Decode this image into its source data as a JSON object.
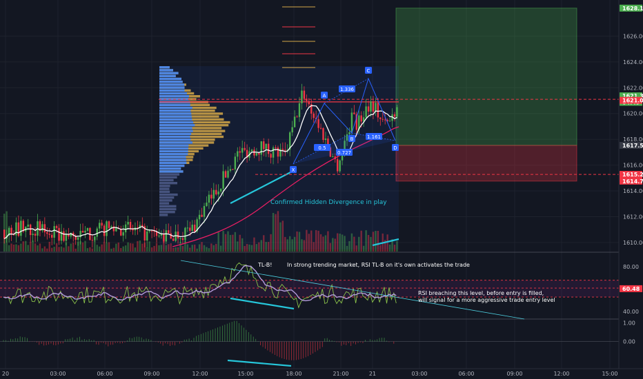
{
  "chart_data": [
    {
      "type": "candlestick",
      "panel": "price",
      "price_ticks": [
        1610,
        1612,
        1614,
        1616,
        1618,
        1620,
        1622,
        1624,
        1626
      ],
      "price_range": [
        1609.3,
        1628.8
      ],
      "x_ticks": [
        "20",
        "03:00",
        "06:00",
        "09:00",
        "12:00",
        "15:00",
        "18:00",
        "21:00",
        "21",
        "03:00",
        "06:00",
        "09:00",
        "12:00",
        "15:00"
      ],
      "price_tags": [
        {
          "label": "1628.17",
          "value": 1628.17,
          "color": "#4caf50"
        },
        {
          "label": "1621.37",
          "value": 1621.37,
          "color": "#4caf50"
        },
        {
          "label": "04:49",
          "value": 1620.87,
          "color": "#4caf50"
        },
        {
          "label": "1621.02",
          "value": 1621.02,
          "color": "#f23645"
        },
        {
          "label": "1617.53",
          "value": 1617.53,
          "color": "#363a45"
        },
        {
          "label": "1615.28",
          "value": 1615.28,
          "color": "#f23645"
        },
        {
          "label": "1614.76",
          "value": 1614.76,
          "color": "#f23645"
        }
      ],
      "harmonic_points": [
        {
          "label": "X",
          "price": 1615.9
        },
        {
          "label": "A",
          "price": 1621.5
        },
        {
          "label": "B",
          "price": 1618.5
        },
        {
          "label": "C",
          "price": 1623.2
        },
        {
          "label": "D",
          "price": 1617.5
        }
      ],
      "ratios": [
        "1.336",
        "0.5",
        "0.727",
        "1.161"
      ],
      "annotation": "Confirmed Hidden Divergence in play",
      "trade_box": {
        "target": 1628.17,
        "entry": 1617.53,
        "stop": 1614.76
      }
    },
    {
      "type": "line",
      "panel": "rsi",
      "y_ticks": [
        80,
        40
      ],
      "y_range": [
        34,
        93
      ],
      "level_tag": {
        "label": "60.48",
        "value": 60.48
      },
      "bands": [
        68,
        61,
        53
      ],
      "annotations": {
        "tlb": "TL-B!",
        "trend": "In strong trending market, RSI TL-B on it's own activates the trade",
        "line1": "RSI breaching this level, before entry is filled,",
        "line2": "will signal for a more aggressive trade entry level"
      }
    },
    {
      "type": "histogram",
      "panel": "oscillator",
      "y_ticks": [
        "1.00",
        "0.00"
      ],
      "y_range": [
        -1.45,
        1.2
      ]
    }
  ],
  "colors": {
    "background": "#131722",
    "bull": "#4caf50",
    "bear": "#f23645",
    "ma_fast": "#ffffff",
    "ma_slow": "#e91e63",
    "rsi_line": "#b39ddb",
    "rsi_raw": "#8bc34a",
    "label_blue": "#2962ff",
    "cyan": "#26c6da"
  }
}
